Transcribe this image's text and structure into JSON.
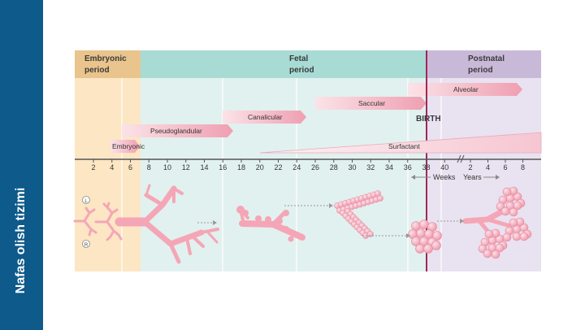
{
  "sidebar": {
    "title": "Nafas olish tizimi"
  },
  "periods": {
    "embryonic": [
      "Embryonic",
      "period"
    ],
    "fetal": [
      "Fetal",
      "period"
    ],
    "postnatal": [
      "Postnatal",
      "period"
    ]
  },
  "stages": {
    "embryonic": "Embryonic",
    "pseudoglandular": "Pseudoglandular",
    "canalicular": "Canalicular",
    "saccular": "Saccular",
    "alveolar": "Alveolar",
    "surfactant": "Surfactant"
  },
  "birth_label": "BIRTH",
  "axis": {
    "week_ticks": [
      "2",
      "4",
      "6",
      "8",
      "10",
      "12",
      "14",
      "16",
      "18",
      "20",
      "22",
      "24",
      "26",
      "28",
      "30",
      "32",
      "34",
      "36",
      "38",
      "40"
    ],
    "year_ticks": [
      "2",
      "4",
      "6",
      "8"
    ],
    "weeks_label": "Weeks",
    "years_label": "Years"
  },
  "lung_labels": {
    "left": "L",
    "right": "R"
  },
  "colors": {
    "sidebar": "#0e5a8a",
    "embryonic_bg": "#fce6c3",
    "fetal_bg": "#dff0ee",
    "postnatal_bg": "#e8e1ef",
    "birth_line": "#a0285a",
    "stage_bar": "#f2b5c1",
    "structure": "#f5a6b6"
  }
}
